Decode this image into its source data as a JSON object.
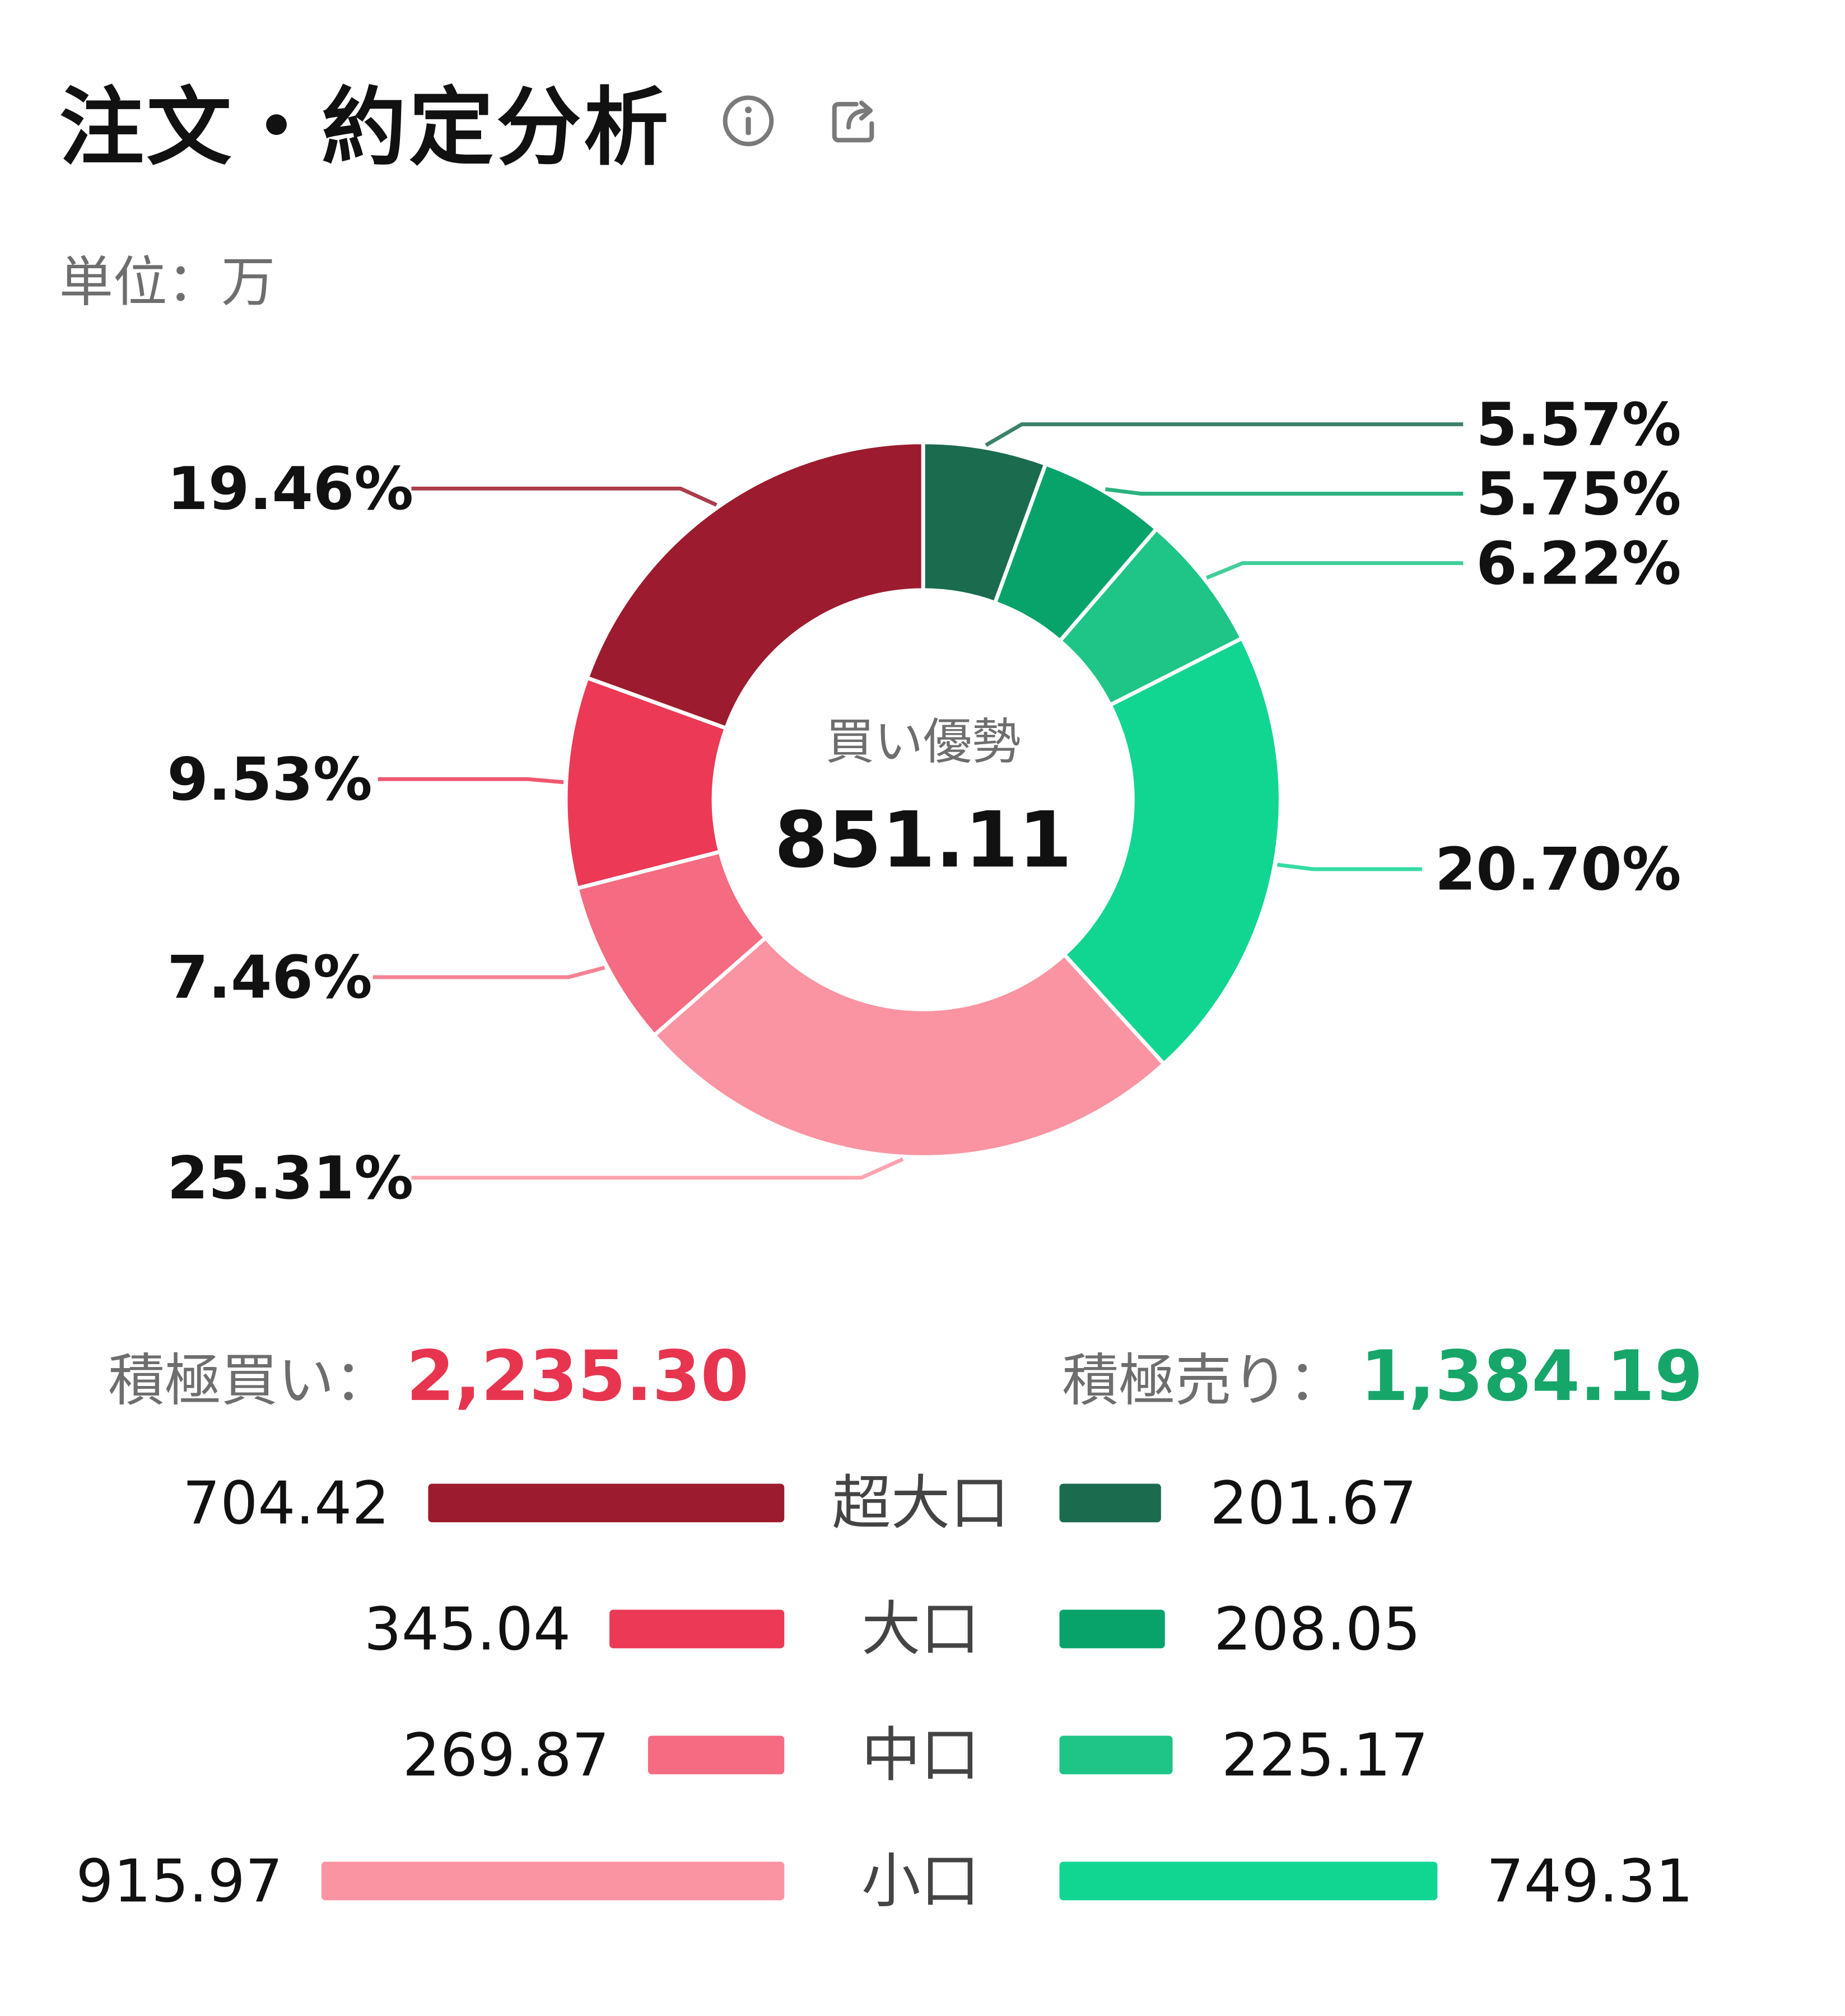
{
  "header": {
    "title": "注文・約定分析",
    "info_icon": "info-icon",
    "share_icon": "share-icon"
  },
  "unit_label": "単位：万",
  "chart_data": {
    "type": "pie",
    "style": "donut",
    "center_caption": "買い優勢",
    "center_value": "851.11",
    "slices": [
      {
        "label": "5.57%",
        "value": 5.57,
        "color": "#1b6b4f"
      },
      {
        "label": "5.75%",
        "value": 5.75,
        "color": "#07a36b"
      },
      {
        "label": "6.22%",
        "value": 6.22,
        "color": "#1ec587"
      },
      {
        "label": "20.70%",
        "value": 20.7,
        "color": "#10d692"
      },
      {
        "label": "25.31%",
        "value": 25.31,
        "color": "#fb94a2"
      },
      {
        "label": "7.46%",
        "value": 7.46,
        "color": "#f56b81"
      },
      {
        "label": "9.53%",
        "value": 9.53,
        "color": "#ec3955"
      },
      {
        "label": "19.46%",
        "value": 19.46,
        "color": "#9d1b2e"
      }
    ]
  },
  "totals": {
    "buy_label": "積極買い：",
    "buy_value": "2,235.30",
    "buy_color": "#e8354f",
    "sell_label": "積極売り：",
    "sell_value": "1,384.19",
    "sell_color": "#17a66a"
  },
  "breakdown": [
    {
      "category": "超大口",
      "buy": "704.42",
      "buy_value": 704.42,
      "buy_color": "#9d1b2e",
      "sell": "201.67",
      "sell_value": 201.67,
      "sell_color": "#1b6b4f"
    },
    {
      "category": "大口",
      "buy": "345.04",
      "buy_value": 345.04,
      "buy_color": "#ec3955",
      "sell": "208.05",
      "sell_value": 208.05,
      "sell_color": "#07a36b"
    },
    {
      "category": "中口",
      "buy": "269.87",
      "buy_value": 269.87,
      "buy_color": "#f56b81",
      "sell": "225.17",
      "sell_value": 225.17,
      "sell_color": "#1ec587"
    },
    {
      "category": "小口",
      "buy": "915.97",
      "buy_value": 915.97,
      "buy_color": "#fb94a2",
      "sell": "749.31",
      "sell_value": 749.31,
      "sell_color": "#10d692"
    }
  ]
}
